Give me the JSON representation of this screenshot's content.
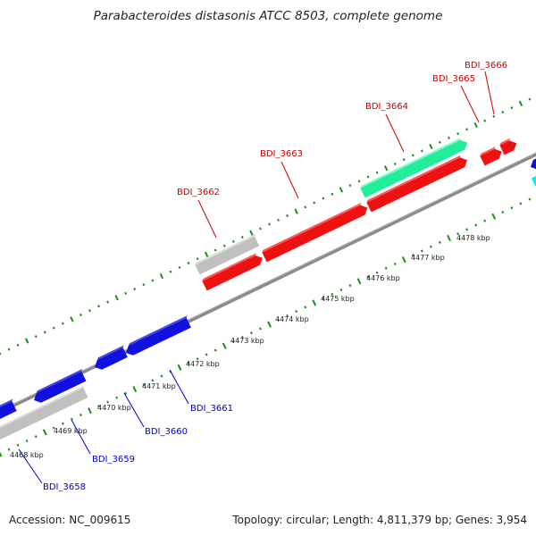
{
  "title": "Parabacteroides distasonis ATCC 8503, complete genome",
  "accession": "Accession: NC_009615",
  "summary": "Topology: circular; Length: 4,811,379 bp; Genes: 3,954",
  "kbp_ticks": [
    "4468 kbp",
    "4469 kbp",
    "4470 kbp",
    "4471 kbp",
    "4472 kbp",
    "4473 kbp",
    "4474 kbp",
    "4475 kbp",
    "4476 kbp",
    "4477 kbp",
    "4478 kbp"
  ],
  "colors": {
    "forward_gene": "#ee1111",
    "reverse_gene": "#1111dd",
    "pseudo_gene": "#c0c0c0",
    "rna_gene": "#22ee99",
    "backbone": "#8c8c8c",
    "tick": "#1d8a1d",
    "forward_label": "#cc0000",
    "reverse_label": "#0000cc"
  },
  "genes": [
    {
      "id": "BDI_3658",
      "strand": "reverse",
      "label": "BDI_3658"
    },
    {
      "id": "BDI_3659",
      "strand": "reverse",
      "label": "BDI_3659"
    },
    {
      "id": "BDI_3660",
      "strand": "reverse",
      "label": "BDI_3660"
    },
    {
      "id": "BDI_3661",
      "strand": "reverse",
      "label": "BDI_3661"
    },
    {
      "id": "BDI_3662",
      "strand": "forward",
      "label": "BDI_3662"
    },
    {
      "id": "BDI_3663",
      "strand": "forward",
      "label": "BDI_3663"
    },
    {
      "id": "BDI_3664",
      "strand": "forward",
      "label": "BDI_3664"
    },
    {
      "id": "BDI_3665",
      "strand": "forward",
      "label": "BDI_3665"
    },
    {
      "id": "BDI_3666",
      "strand": "forward",
      "label": "BDI_3666"
    }
  ]
}
